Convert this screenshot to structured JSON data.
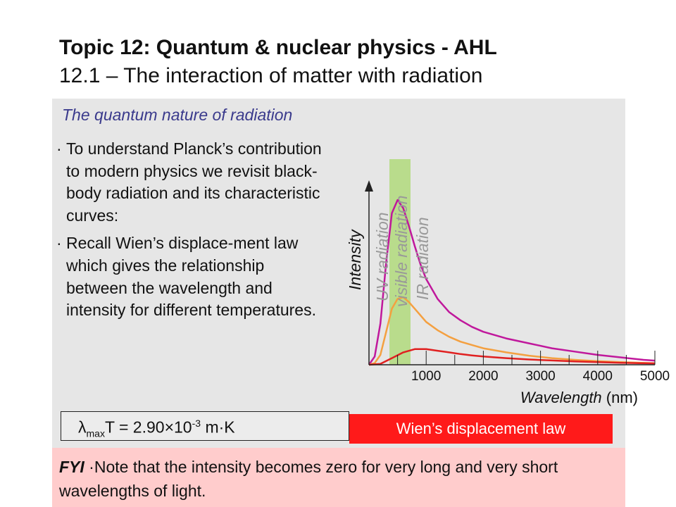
{
  "header": {
    "title_line1": "Topic 12: Quantum & nuclear physics - AHL",
    "title_line2": "12.1 – The interaction of matter with radiation"
  },
  "section": {
    "subtitle": "The quantum nature of radiation",
    "bullet_symbol": "·",
    "bullets": [
      "To understand Planck’s contribution to modern physics we revisit black-body radiation and its characteristic curves:",
      "Recall Wien’s displace-ment law which gives the relationship between the wavelength and intensity for different temperatures."
    ]
  },
  "formula": {
    "lambda": "λ",
    "sub": "max",
    "t_eq": "T = 2.90",
    "times": "×",
    "ten": "10",
    "exp": "-3",
    "unit": " m·K"
  },
  "law_label": "Wien’s displacement law",
  "fyi": {
    "label": "FYI",
    "text": "Note that the intensity becomes zero for very long and very short wavelengths of light."
  },
  "chart_data": {
    "type": "line",
    "ylabel": "Intensity",
    "xlabel_italic": "Wavelength",
    "xlabel_unit": " (nm)",
    "x_ticks": [
      1000,
      2000,
      3000,
      4000,
      5000
    ],
    "xlim": [
      0,
      5000
    ],
    "bands": [
      "UV radiation",
      "visible radiation",
      "IR radiation"
    ],
    "visible_band_color": "#b9dc8c",
    "series": [
      {
        "color": "#c0189c",
        "x": [
          0,
          100,
          200,
          300,
          400,
          500,
          600,
          700,
          800,
          900,
          1000,
          1200,
          1400,
          1600,
          1800,
          2000,
          2400,
          2800,
          3200,
          3600,
          4000,
          4400,
          4800,
          5000
        ],
        "y": [
          0,
          0.05,
          0.25,
          0.62,
          0.92,
          1.0,
          0.95,
          0.84,
          0.72,
          0.61,
          0.52,
          0.4,
          0.32,
          0.27,
          0.23,
          0.2,
          0.16,
          0.13,
          0.1,
          0.08,
          0.06,
          0.045,
          0.03,
          0.025
        ]
      },
      {
        "color": "#f4a040",
        "x": [
          0,
          100,
          200,
          300,
          400,
          500,
          600,
          700,
          800,
          900,
          1000,
          1200,
          1400,
          1600,
          1800,
          2000,
          2400,
          2800,
          3200,
          3600,
          4000,
          4400,
          4800,
          5000
        ],
        "y": [
          0,
          0.01,
          0.06,
          0.2,
          0.34,
          0.4,
          0.41,
          0.38,
          0.34,
          0.3,
          0.26,
          0.21,
          0.17,
          0.14,
          0.12,
          0.1,
          0.075,
          0.055,
          0.04,
          0.03,
          0.022,
          0.016,
          0.012,
          0.01
        ]
      },
      {
        "color": "#e02020",
        "x": [
          0,
          200,
          400,
          600,
          800,
          1000,
          1200,
          1400,
          1600,
          1800,
          2000,
          2400,
          2800,
          3200,
          3600,
          4000,
          4400,
          4800,
          5000
        ],
        "y": [
          0,
          0.005,
          0.04,
          0.075,
          0.095,
          0.095,
          0.085,
          0.075,
          0.065,
          0.057,
          0.05,
          0.04,
          0.032,
          0.026,
          0.02,
          0.016,
          0.012,
          0.009,
          0.008
        ]
      }
    ]
  }
}
